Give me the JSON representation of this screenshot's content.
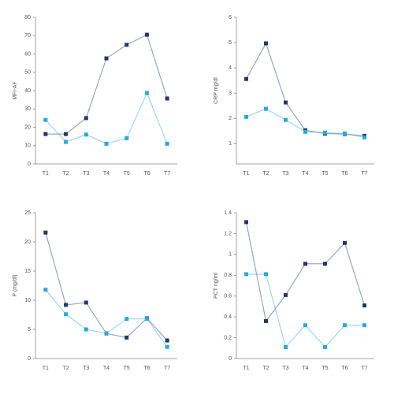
{
  "chart_data": [
    {
      "type": "line",
      "y_label": "MFI-AF",
      "categories": [
        "T1",
        "T2",
        "T3",
        "T4",
        "T5",
        "T6",
        "T7"
      ],
      "series": [
        {
          "color": "#1f3a68",
          "values": [
            16.3,
            16.3,
            25,
            57.6,
            65,
            70.5,
            35.7
          ]
        },
        {
          "color": "#2aa7e0",
          "values": [
            24,
            12,
            16,
            11,
            14,
            38.7,
            11
          ]
        }
      ],
      "ylim": [
        0,
        80
      ],
      "yticks": [
        0,
        10,
        20,
        30,
        40,
        50,
        60,
        70,
        80
      ]
    },
    {
      "type": "line",
      "y_label": "CRP mg/dl",
      "categories": [
        "T1",
        "T2",
        "T3",
        "T4",
        "T5",
        "T6",
        "T7"
      ],
      "series": [
        {
          "color": "#1f3a68",
          "values": [
            3.56,
            4.97,
            2.63,
            1.53,
            1.4,
            1.38,
            1.31
          ]
        },
        {
          "color": "#2aa7e0",
          "values": [
            2.06,
            2.38,
            1.94,
            1.47,
            1.44,
            1.4,
            1.25
          ]
        }
      ],
      "ylim": [
        0.2,
        6
      ],
      "yticks": [
        1,
        2,
        3,
        4,
        5,
        6
      ]
    },
    {
      "type": "line",
      "y_label": "P (mg/dl)",
      "categories": [
        "T1",
        "T2",
        "T3",
        "T4",
        "T5",
        "T6",
        "T7"
      ],
      "series": [
        {
          "color": "#1f3a68",
          "values": [
            21.6,
            9.2,
            9.6,
            4.3,
            3.6,
            6.9,
            3.1
          ]
        },
        {
          "color": "#2aa7e0",
          "values": [
            11.8,
            7.6,
            5,
            4.3,
            6.8,
            6.8,
            2
          ]
        }
      ],
      "ylim": [
        0,
        25
      ],
      "yticks": [
        0,
        5,
        10,
        15,
        20,
        25
      ]
    },
    {
      "type": "line",
      "y_label": "PCT ng/ml",
      "categories": [
        "T1",
        "T2",
        "T3",
        "T4",
        "T5",
        "T6",
        "T7"
      ],
      "series": [
        {
          "color": "#1f3a68",
          "values": [
            1.31,
            0.36,
            0.61,
            0.91,
            0.91,
            1.11,
            0.51
          ]
        },
        {
          "color": "#2aa7e0",
          "values": [
            0.81,
            0.81,
            0.11,
            0.32,
            0.11,
            0.32,
            0.32
          ]
        }
      ],
      "ylim": [
        0,
        1.4
      ],
      "yticks": [
        0,
        0.2,
        0.4,
        0.6,
        0.8,
        1,
        1.2,
        1.4
      ]
    }
  ]
}
